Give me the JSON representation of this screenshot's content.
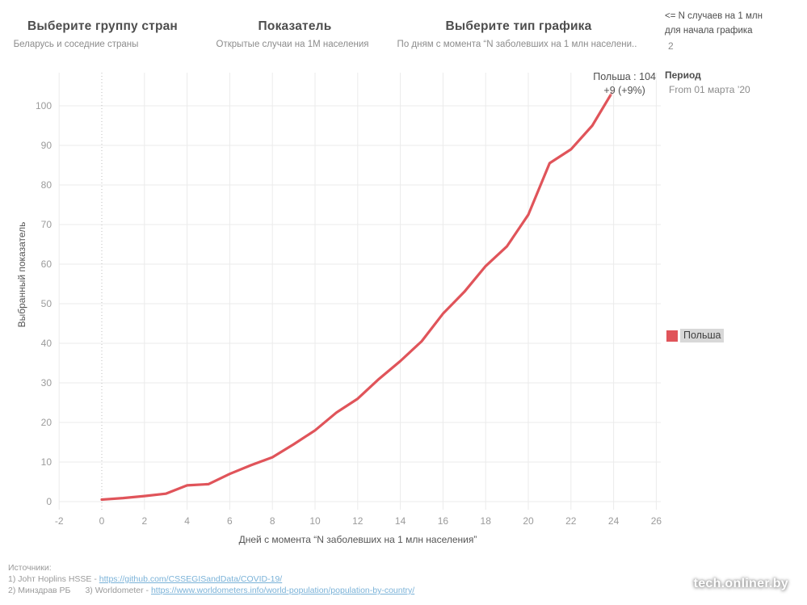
{
  "header": {
    "filters": [
      {
        "title": "Выберите группу стран",
        "value": "Беларусь и соседние страны"
      },
      {
        "title": "Показатель",
        "value": "Открытые случаи на 1М населения"
      },
      {
        "title": "Выберите тип графика",
        "value": "По дням с момента “N заболевших на 1 млн населени.."
      }
    ],
    "threshold": {
      "label_line1": "<= N случаев на 1 млн",
      "label_line2": "для начала графика",
      "value": "2"
    },
    "period": {
      "label": "Период",
      "value": "From 01 марта ’20"
    }
  },
  "annotation": {
    "title": "Польша : 104",
    "delta": "+9 (+9%)"
  },
  "legend": {
    "items": [
      {
        "label": "Польша",
        "color": "#e0545a"
      }
    ]
  },
  "chart_data": {
    "type": "line",
    "xlabel": "Дней с момента “N заболевших на 1 млн населения”",
    "ylabel": "Выбранный показатель",
    "x_ticks": [
      -2,
      0,
      2,
      4,
      6,
      8,
      10,
      12,
      14,
      16,
      18,
      20,
      22,
      24,
      26
    ],
    "y_ticks": [
      0,
      10,
      20,
      30,
      40,
      50,
      60,
      70,
      80,
      90,
      100
    ],
    "xlim": [
      -2,
      26.5
    ],
    "ylim": [
      0,
      108
    ],
    "grid": true,
    "x_reference_line": 0,
    "legend_position": "right",
    "series": [
      {
        "name": "Польша",
        "color": "#e0545a",
        "x": [
          0,
          1,
          2,
          3,
          4,
          5,
          6,
          7,
          8,
          9,
          10,
          11,
          12,
          13,
          14,
          15,
          16,
          17,
          18,
          19,
          20,
          21,
          22,
          23,
          24
        ],
        "y": [
          0.5,
          0.9,
          1.4,
          2,
          4.1,
          4.4,
          7,
          9.2,
          11.2,
          14.5,
          18,
          22.5,
          26,
          31,
          35.5,
          40.5,
          47.5,
          53,
          59.5,
          64.5,
          72.5,
          85.5,
          89,
          95,
          104
        ]
      }
    ],
    "end_label": "Польша : 104",
    "end_delta": "+9 (+9%)"
  },
  "footer": {
    "sources_label": "Источники:",
    "source1_text": "1) Johт Hoplins HSSE - ",
    "source1_link": "https://github.com/CSSEGISandData/COVID-19/",
    "source2_text": "2) Минздрав РБ",
    "source3_text": "3) Worldometer - ",
    "source3_link": "https://www.worldometers.info/world-population/population-by-country/"
  },
  "watermark": "tech.onliner.by"
}
